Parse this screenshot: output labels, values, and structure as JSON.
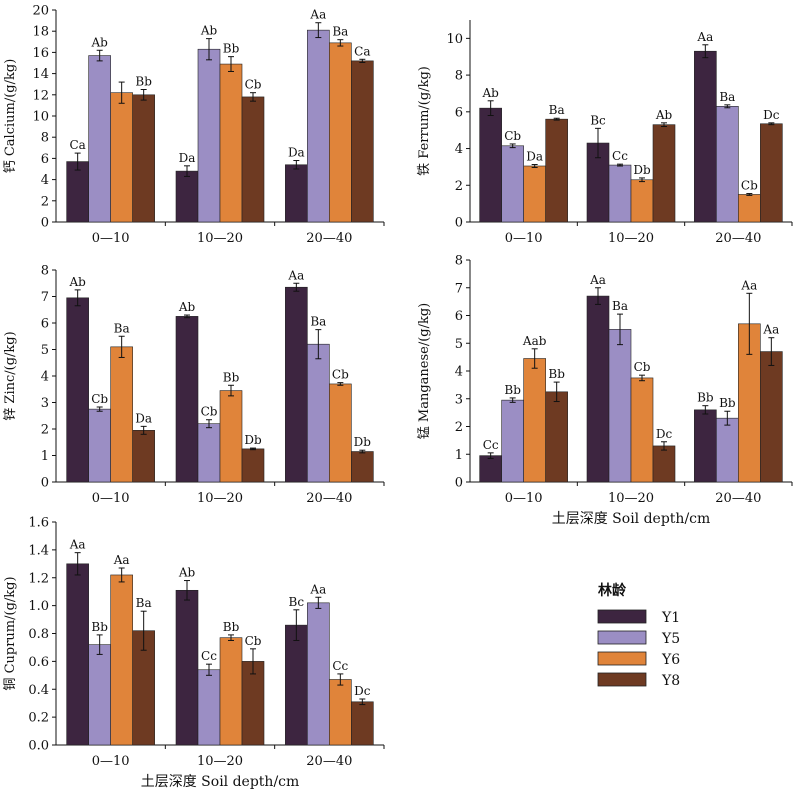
{
  "legend": {
    "title": "林龄",
    "items": [
      {
        "name": "Y1",
        "color": "#3d2540"
      },
      {
        "name": "Y5",
        "color": "#9b8ec4"
      },
      {
        "name": "Y6",
        "color": "#e0843a"
      },
      {
        "name": "Y8",
        "color": "#6e3a22"
      }
    ]
  },
  "chart_data": [
    {
      "type": "bar",
      "ylabel": "钙 Calcium/(g/kg)",
      "xlabel": "",
      "ylim": [
        0,
        20
      ],
      "yticks": [
        0,
        2,
        4,
        6,
        8,
        10,
        12,
        14,
        16,
        18,
        20
      ],
      "categories": [
        "0—10",
        "10—20",
        "20—40"
      ],
      "series": [
        {
          "name": "Y1",
          "values": [
            5.7,
            4.8,
            5.4
          ],
          "errors": [
            0.8,
            0.5,
            0.4
          ],
          "labels": [
            "Ca",
            "Da",
            "Da"
          ]
        },
        {
          "name": "Y5",
          "values": [
            15.7,
            16.3,
            18.1
          ],
          "errors": [
            0.5,
            1.0,
            0.7
          ],
          "labels": [
            "Ab",
            "Ab",
            "Aa"
          ]
        },
        {
          "name": "Y6",
          "values": [
            12.2,
            14.9,
            16.9
          ],
          "errors": [
            1.0,
            0.7,
            0.3
          ],
          "labels": [
            "",
            "Bb",
            "Ba"
          ]
        },
        {
          "name": "Y8",
          "values": [
            12.0,
            11.8,
            15.2
          ],
          "errors": [
            0.5,
            0.4,
            0.15
          ],
          "labels": [
            "Bb",
            "Cb",
            "Ca"
          ]
        }
      ]
    },
    {
      "type": "bar",
      "ylabel": "铁 Ferrum/(g/kg)",
      "xlabel": "",
      "ylim": [
        0,
        11
      ],
      "yticks": [
        0,
        2,
        4,
        6,
        8,
        10
      ],
      "categories": [
        "0—10",
        "10—20",
        "20—40"
      ],
      "series": [
        {
          "name": "Y1",
          "values": [
            6.2,
            4.3,
            9.3
          ],
          "errors": [
            0.4,
            0.8,
            0.35
          ],
          "labels": [
            "Ab",
            "Bc",
            "Aa"
          ]
        },
        {
          "name": "Y5",
          "values": [
            4.15,
            3.1,
            6.3
          ],
          "errors": [
            0.1,
            0.05,
            0.08
          ],
          "labels": [
            "Cb",
            "Cc",
            "Ba"
          ]
        },
        {
          "name": "Y6",
          "values": [
            3.05,
            2.3,
            1.5
          ],
          "errors": [
            0.08,
            0.1,
            0.05
          ],
          "labels": [
            "Da",
            "Db",
            "Cb"
          ]
        },
        {
          "name": "Y8",
          "values": [
            5.6,
            5.3,
            5.35
          ],
          "errors": [
            0.05,
            0.1,
            0.05
          ],
          "labels": [
            "Ba",
            "Ab",
            "Dc"
          ]
        }
      ]
    },
    {
      "type": "bar",
      "ylabel": "锌 Zinc/(g/kg)",
      "xlabel": "",
      "ylim": [
        0,
        8
      ],
      "yticks": [
        0,
        1,
        2,
        3,
        4,
        5,
        6,
        7,
        8
      ],
      "categories": [
        "0—10",
        "10—20",
        "20—40"
      ],
      "series": [
        {
          "name": "Y1",
          "values": [
            6.95,
            6.25,
            7.35
          ],
          "errors": [
            0.3,
            0.05,
            0.15
          ],
          "labels": [
            "Ab",
            "Ab",
            "Aa"
          ]
        },
        {
          "name": "Y5",
          "values": [
            2.75,
            2.2,
            5.2
          ],
          "errors": [
            0.08,
            0.15,
            0.55
          ],
          "labels": [
            "Cb",
            "Cb",
            "Ba"
          ]
        },
        {
          "name": "Y6",
          "values": [
            5.1,
            3.45,
            3.7
          ],
          "errors": [
            0.4,
            0.2,
            0.05
          ],
          "labels": [
            "Ba",
            "Bb",
            "Cb"
          ]
        },
        {
          "name": "Y8",
          "values": [
            1.95,
            1.25,
            1.15
          ],
          "errors": [
            0.15,
            0.03,
            0.05
          ],
          "labels": [
            "Da",
            "Db",
            "Db"
          ]
        }
      ]
    },
    {
      "type": "bar",
      "ylabel": "锰 Manganese/(g/kg)",
      "xlabel": "土层深度 Soil depth/cm",
      "ylim": [
        0,
        8
      ],
      "yticks": [
        0,
        1,
        2,
        3,
        4,
        5,
        6,
        7,
        8
      ],
      "categories": [
        "0—10",
        "10—20",
        "20—40"
      ],
      "series": [
        {
          "name": "Y1",
          "values": [
            0.95,
            6.7,
            2.6
          ],
          "errors": [
            0.1,
            0.3,
            0.15
          ],
          "labels": [
            "Cc",
            "Aa",
            "Bb"
          ]
        },
        {
          "name": "Y5",
          "values": [
            2.95,
            5.5,
            2.3
          ],
          "errors": [
            0.08,
            0.55,
            0.25
          ],
          "labels": [
            "Bb",
            "Ba",
            "Bb"
          ]
        },
        {
          "name": "Y6",
          "values": [
            4.45,
            3.75,
            5.7
          ],
          "errors": [
            0.35,
            0.1,
            1.1
          ],
          "labels": [
            "Aab",
            "Cb",
            "Aa"
          ]
        },
        {
          "name": "Y8",
          "values": [
            3.25,
            1.3,
            4.7
          ],
          "errors": [
            0.35,
            0.15,
            0.5
          ],
          "labels": [
            "Bb",
            "Dc",
            "Aa"
          ]
        }
      ]
    },
    {
      "type": "bar",
      "ylabel": "铜 Cuprum/(g/kg)",
      "xlabel": "土层深度 Soil depth/cm",
      "ylim": [
        0,
        1.6
      ],
      "yticks": [
        0,
        0.2,
        0.4,
        0.6,
        0.8,
        1.0,
        1.2,
        1.4,
        1.6
      ],
      "categories": [
        "0—10",
        "10—20",
        "20—40"
      ],
      "series": [
        {
          "name": "Y1",
          "values": [
            1.3,
            1.11,
            0.86
          ],
          "errors": [
            0.08,
            0.07,
            0.11
          ],
          "labels": [
            "Aa",
            "Ab",
            "Bc"
          ]
        },
        {
          "name": "Y5",
          "values": [
            0.72,
            0.54,
            1.02
          ],
          "errors": [
            0.07,
            0.04,
            0.04
          ],
          "labels": [
            "Bb",
            "Cc",
            "Aa"
          ]
        },
        {
          "name": "Y6",
          "values": [
            1.22,
            0.77,
            0.47
          ],
          "errors": [
            0.05,
            0.02,
            0.04
          ],
          "labels": [
            "Aa",
            "Bb",
            "Cc"
          ]
        },
        {
          "name": "Y8",
          "values": [
            0.82,
            0.6,
            0.31
          ],
          "errors": [
            0.14,
            0.09,
            0.02
          ],
          "labels": [
            "Ba",
            "Cb",
            "Dc"
          ]
        }
      ]
    }
  ]
}
